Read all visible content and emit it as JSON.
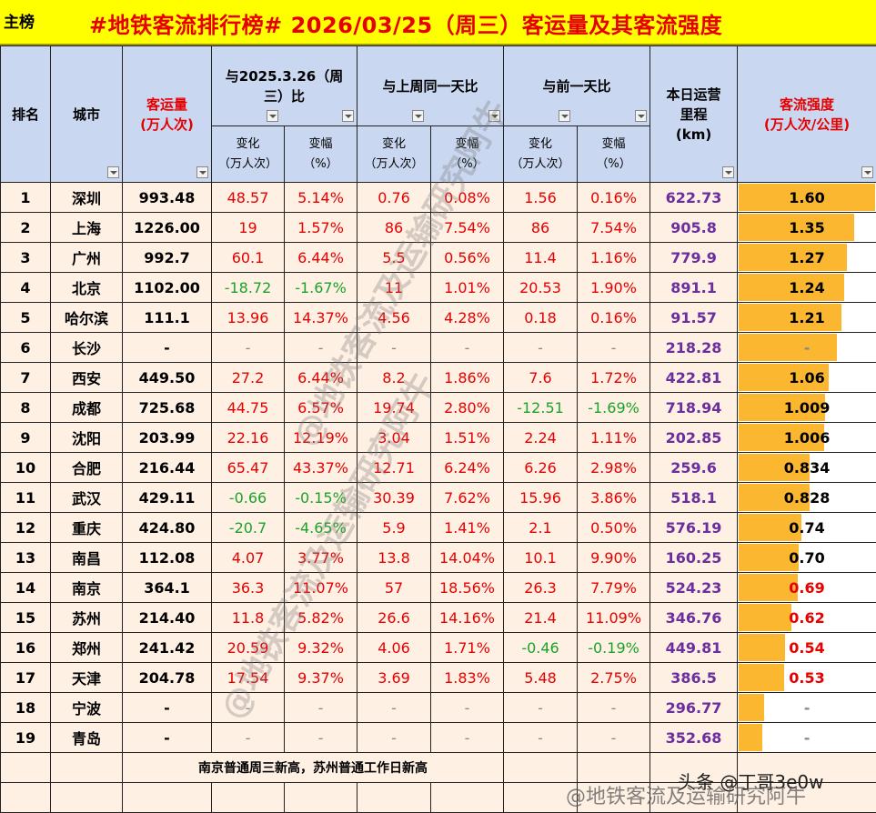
{
  "title": {
    "label": "主榜",
    "main": "#地铁客流排行榜# 2026/03/25（周三）客运量及其客流强度"
  },
  "headers": {
    "rank": "排名",
    "city": "城市",
    "volume_line1": "客运量",
    "volume_line2": "(万人次)",
    "yoy_line1": "与2025.3.26（周",
    "yoy_line2": "三）比",
    "wow": "与上周同一天比",
    "dod": "与前一天比",
    "km_line1": "本日运营",
    "km_line2": "里程",
    "km_line3": "(km)",
    "intensity_line1": "客流强度",
    "intensity_line2": "(万人次/公里)",
    "change_line1": "变化",
    "change_line2": "（万人次）",
    "pct_line1": "变幅",
    "pct_line2": "（%）"
  },
  "rows": [
    {
      "rank": "1",
      "city": "深圳",
      "volume": "993.48",
      "yoy_c": "48.57",
      "yoy_p": "5.14%",
      "wow_c": "0.76",
      "wow_p": "0.08%",
      "dod_c": "1.56",
      "dod_p": "0.16%",
      "km": "622.73",
      "intensity": "1.60",
      "bar": 1.6
    },
    {
      "rank": "2",
      "city": "上海",
      "volume": "1226.00",
      "yoy_c": "19",
      "yoy_p": "1.57%",
      "wow_c": "86",
      "wow_p": "7.54%",
      "dod_c": "86",
      "dod_p": "7.54%",
      "km": "905.8",
      "intensity": "1.35",
      "bar": 1.35
    },
    {
      "rank": "3",
      "city": "广州",
      "volume": "992.7",
      "yoy_c": "60.1",
      "yoy_p": "6.44%",
      "wow_c": "5.5",
      "wow_p": "0.56%",
      "dod_c": "11.4",
      "dod_p": "1.16%",
      "km": "779.9",
      "intensity": "1.27",
      "bar": 1.27
    },
    {
      "rank": "4",
      "city": "北京",
      "volume": "1102.00",
      "yoy_c": "-18.72",
      "yoy_p": "-1.67%",
      "wow_c": "11",
      "wow_p": "1.01%",
      "dod_c": "20.53",
      "dod_p": "1.90%",
      "km": "891.1",
      "intensity": "1.24",
      "bar": 1.24
    },
    {
      "rank": "5",
      "city": "哈尔滨",
      "volume": "111.1",
      "yoy_c": "13.96",
      "yoy_p": "14.37%",
      "wow_c": "4.56",
      "wow_p": "4.28%",
      "dod_c": "0.18",
      "dod_p": "0.16%",
      "km": "91.57",
      "intensity": "1.21",
      "bar": 1.21
    },
    {
      "rank": "6",
      "city": "长沙",
      "volume": "-",
      "yoy_c": "-",
      "yoy_p": "-",
      "wow_c": "-",
      "wow_p": "-",
      "dod_c": "-",
      "dod_p": "-",
      "km": "218.28",
      "intensity": "-",
      "bar": 1.15
    },
    {
      "rank": "7",
      "city": "西安",
      "volume": "449.50",
      "yoy_c": "27.2",
      "yoy_p": "6.44%",
      "wow_c": "8.2",
      "wow_p": "1.86%",
      "dod_c": "7.6",
      "dod_p": "1.72%",
      "km": "422.81",
      "intensity": "1.06",
      "bar": 1.06
    },
    {
      "rank": "8",
      "city": "成都",
      "volume": "725.68",
      "yoy_c": "44.75",
      "yoy_p": "6.57%",
      "wow_c": "19.74",
      "wow_p": "2.80%",
      "dod_c": "-12.51",
      "dod_p": "-1.69%",
      "km": "718.94",
      "intensity": "1.009",
      "bar": 1.009
    },
    {
      "rank": "9",
      "city": "沈阳",
      "volume": "203.99",
      "yoy_c": "22.16",
      "yoy_p": "12.19%",
      "wow_c": "3.04",
      "wow_p": "1.51%",
      "dod_c": "2.24",
      "dod_p": "1.11%",
      "km": "202.85",
      "intensity": "1.006",
      "bar": 1.006
    },
    {
      "rank": "10",
      "city": "合肥",
      "volume": "216.44",
      "yoy_c": "65.47",
      "yoy_p": "43.37%",
      "wow_c": "12.71",
      "wow_p": "6.24%",
      "dod_c": "6.26",
      "dod_p": "2.98%",
      "km": "259.6",
      "intensity": "0.834",
      "bar": 0.834
    },
    {
      "rank": "11",
      "city": "武汉",
      "volume": "429.11",
      "yoy_c": "-0.66",
      "yoy_p": "-0.15%",
      "wow_c": "30.39",
      "wow_p": "7.62%",
      "dod_c": "15.96",
      "dod_p": "3.86%",
      "km": "518.1",
      "intensity": "0.828",
      "bar": 0.828
    },
    {
      "rank": "12",
      "city": "重庆",
      "volume": "424.80",
      "yoy_c": "-20.7",
      "yoy_p": "-4.65%",
      "wow_c": "5.9",
      "wow_p": "1.41%",
      "dod_c": "2.1",
      "dod_p": "0.50%",
      "km": "576.19",
      "intensity": "0.74",
      "bar": 0.74
    },
    {
      "rank": "13",
      "city": "南昌",
      "volume": "112.08",
      "yoy_c": "4.07",
      "yoy_p": "3.77%",
      "wow_c": "13.8",
      "wow_p": "14.04%",
      "dod_c": "10.1",
      "dod_p": "9.90%",
      "km": "160.25",
      "intensity": "0.70",
      "bar": 0.7
    },
    {
      "rank": "14",
      "city": "南京",
      "volume": "364.1",
      "yoy_c": "36.3",
      "yoy_p": "11.07%",
      "wow_c": "57",
      "wow_p": "18.56%",
      "dod_c": "26.3",
      "dod_p": "7.79%",
      "km": "524.23",
      "intensity": "0.69",
      "bar": 0.69
    },
    {
      "rank": "15",
      "city": "苏州",
      "volume": "214.40",
      "yoy_c": "11.8",
      "yoy_p": "5.82%",
      "wow_c": "26.6",
      "wow_p": "14.16%",
      "dod_c": "21.4",
      "dod_p": "11.09%",
      "km": "346.76",
      "intensity": "0.62",
      "bar": 0.62
    },
    {
      "rank": "16",
      "city": "郑州",
      "volume": "241.42",
      "yoy_c": "20.59",
      "yoy_p": "9.32%",
      "wow_c": "4.06",
      "wow_p": "1.71%",
      "dod_c": "-0.46",
      "dod_p": "-0.19%",
      "km": "449.81",
      "intensity": "0.54",
      "bar": 0.54
    },
    {
      "rank": "17",
      "city": "天津",
      "volume": "204.78",
      "yoy_c": "17.54",
      "yoy_p": "9.37%",
      "wow_c": "3.69",
      "wow_p": "1.83%",
      "dod_c": "5.48",
      "dod_p": "2.75%",
      "km": "386.5",
      "intensity": "0.53",
      "bar": 0.53
    },
    {
      "rank": "18",
      "city": "宁波",
      "volume": "-",
      "yoy_c": "-",
      "yoy_p": "-",
      "wow_c": "-",
      "wow_p": "-",
      "dod_c": "-",
      "dod_p": "-",
      "km": "296.77",
      "intensity": "-",
      "bar": 0.3
    },
    {
      "rank": "19",
      "city": "青岛",
      "volume": "-",
      "yoy_c": "-",
      "yoy_p": "-",
      "wow_c": "-",
      "wow_p": "-",
      "dod_c": "-",
      "dod_p": "-",
      "km": "352.68",
      "intensity": "-",
      "bar": 0.28
    }
  ],
  "footer_note": "南京普通周三新高，苏州普通工作日新高",
  "watermark_center": "@地铁客流及运输研究阿牛",
  "watermark_bottom": "@地铁客流及运输研究阿牛",
  "author_tag": "头条 @丁哥3e0w",
  "colors": {
    "title_bg": "#FFFF00",
    "title_text": "#E60000",
    "header_bg": "#C9D7F0",
    "row_bg": "#FFF0E4",
    "positive": "#E60000",
    "negative": "#1AA32A",
    "mileage": "#6A2E9E",
    "bar_fill": "#FBB730"
  },
  "bar_max": 1.6
}
